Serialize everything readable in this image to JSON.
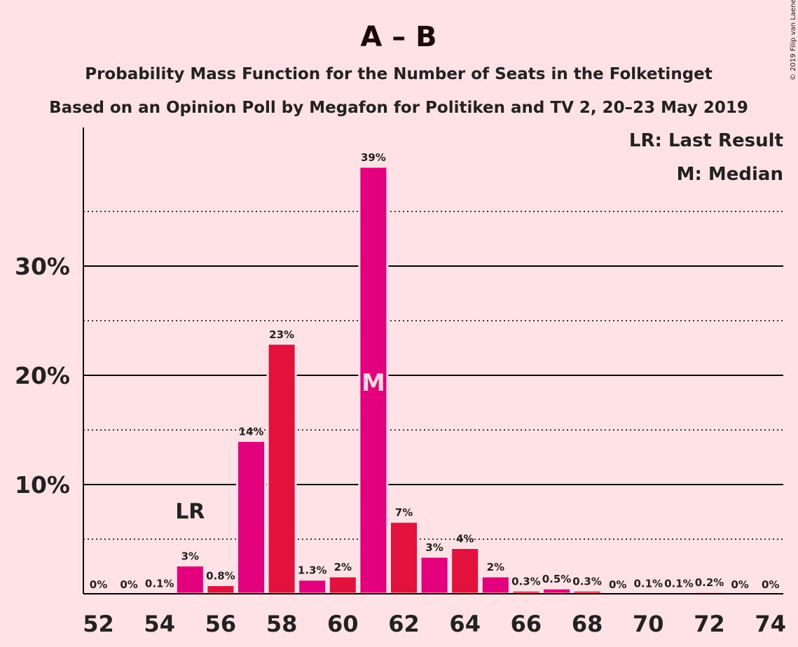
{
  "chart_data": {
    "type": "bar",
    "title": "A – B",
    "subtitle1": "Probability Mass Function for the Number of Seats in the Folketinget",
    "subtitle2": "Based on an Opinion Poll by Megafon for Politiken and TV 2, 20–23 May 2019",
    "copyright": "© 2019 Filip van Laenen",
    "x": [
      52,
      53,
      54,
      55,
      56,
      57,
      58,
      59,
      60,
      61,
      62,
      63,
      64,
      65,
      66,
      67,
      68,
      69,
      70,
      71,
      72,
      73,
      74
    ],
    "values": [
      0,
      0,
      0.1,
      2.6,
      0.8,
      14,
      22.9,
      1.3,
      1.6,
      39.1,
      6.6,
      3.4,
      4.2,
      1.6,
      0.3,
      0.5,
      0.3,
      0,
      0.1,
      0.1,
      0.2,
      0,
      0
    ],
    "data_labels": [
      "0%",
      "0%",
      "0.1%",
      "3%",
      "0.8%",
      "14%",
      "23%",
      "1.3%",
      "2%",
      "39%",
      "7%",
      "3%",
      "4%",
      "2%",
      "0.3%",
      "0.5%",
      "0.3%",
      "0%",
      "0.1%",
      "0.1%",
      "0.2%",
      "0%",
      "0%"
    ],
    "x_tick_labels": [
      "52",
      "54",
      "56",
      "58",
      "60",
      "62",
      "64",
      "66",
      "68",
      "70",
      "72",
      "74"
    ],
    "y_ticks": [
      10,
      20,
      30
    ],
    "y_tick_labels": [
      "10%",
      "20%",
      "30%"
    ],
    "y_minor_ticks": [
      5,
      15,
      25,
      35
    ],
    "ylim": [
      0,
      42
    ],
    "ylabel": "",
    "xlabel": "",
    "last_result_seat": 55,
    "last_result_label": "LR",
    "median_seat": 61,
    "median_label": "M",
    "legend": [
      "LR: Last Result",
      "M: Median"
    ],
    "legend_position": "top-right",
    "colors": {
      "background": "#FFE2E6",
      "bar_even": "#E3123C",
      "bar_odd": "#E4007C",
      "axis": "#000000"
    }
  }
}
